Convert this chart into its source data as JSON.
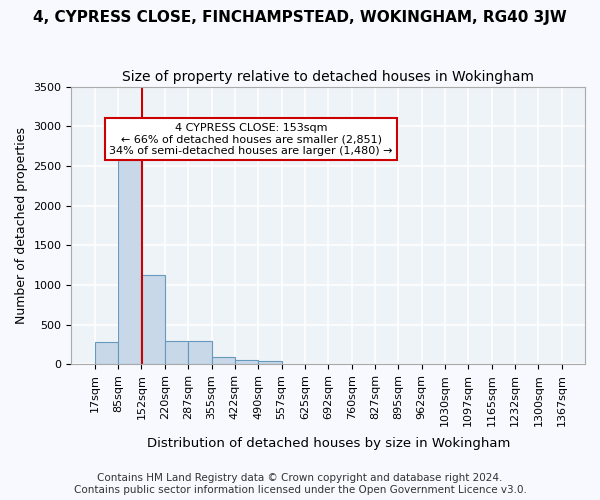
{
  "title1": "4, CYPRESS CLOSE, FINCHAMPSTEAD, WOKINGHAM, RG40 3JW",
  "title2": "Size of property relative to detached houses in Wokingham",
  "xlabel": "Distribution of detached houses by size in Wokingham",
  "ylabel": "Number of detached properties",
  "footer1": "Contains HM Land Registry data © Crown copyright and database right 2024.",
  "footer2": "Contains public sector information licensed under the Open Government Licence v3.0.",
  "bin_edges": [
    17,
    85,
    152,
    220,
    287,
    355,
    422,
    490,
    557,
    625,
    692,
    760,
    827,
    895,
    962,
    1030,
    1097,
    1165,
    1232,
    1300,
    1367
  ],
  "bin_labels": [
    "17sqm",
    "85sqm",
    "152sqm",
    "220sqm",
    "287sqm",
    "355sqm",
    "422sqm",
    "490sqm",
    "557sqm",
    "625sqm",
    "692sqm",
    "760sqm",
    "827sqm",
    "895sqm",
    "962sqm",
    "1030sqm",
    "1097sqm",
    "1165sqm",
    "1232sqm",
    "1300sqm",
    "1367sqm"
  ],
  "bar_heights": [
    275,
    2580,
    1130,
    295,
    295,
    85,
    55,
    45,
    3,
    2,
    2,
    2,
    1,
    1,
    1,
    1,
    1,
    1,
    1,
    1
  ],
  "bar_color": "#c8d8e8",
  "bar_edge_color": "#6699bb",
  "property_line_x": 153,
  "property_line_color": "#cc0000",
  "annotation_text": "4 CYPRESS CLOSE: 153sqm\n← 66% of detached houses are smaller (2,851)\n34% of semi-detached houses are larger (1,480) →",
  "annotation_box_color": "#ffffff",
  "annotation_box_edge": "#cc0000",
  "ylim": [
    0,
    3500
  ],
  "yticks": [
    0,
    500,
    1000,
    1500,
    2000,
    2500,
    3000,
    3500
  ],
  "background_color": "#eef3f8",
  "grid_color": "#ffffff",
  "title1_fontsize": 11,
  "title2_fontsize": 10,
  "axis_label_fontsize": 9,
  "tick_fontsize": 8,
  "footer_fontsize": 7.5
}
